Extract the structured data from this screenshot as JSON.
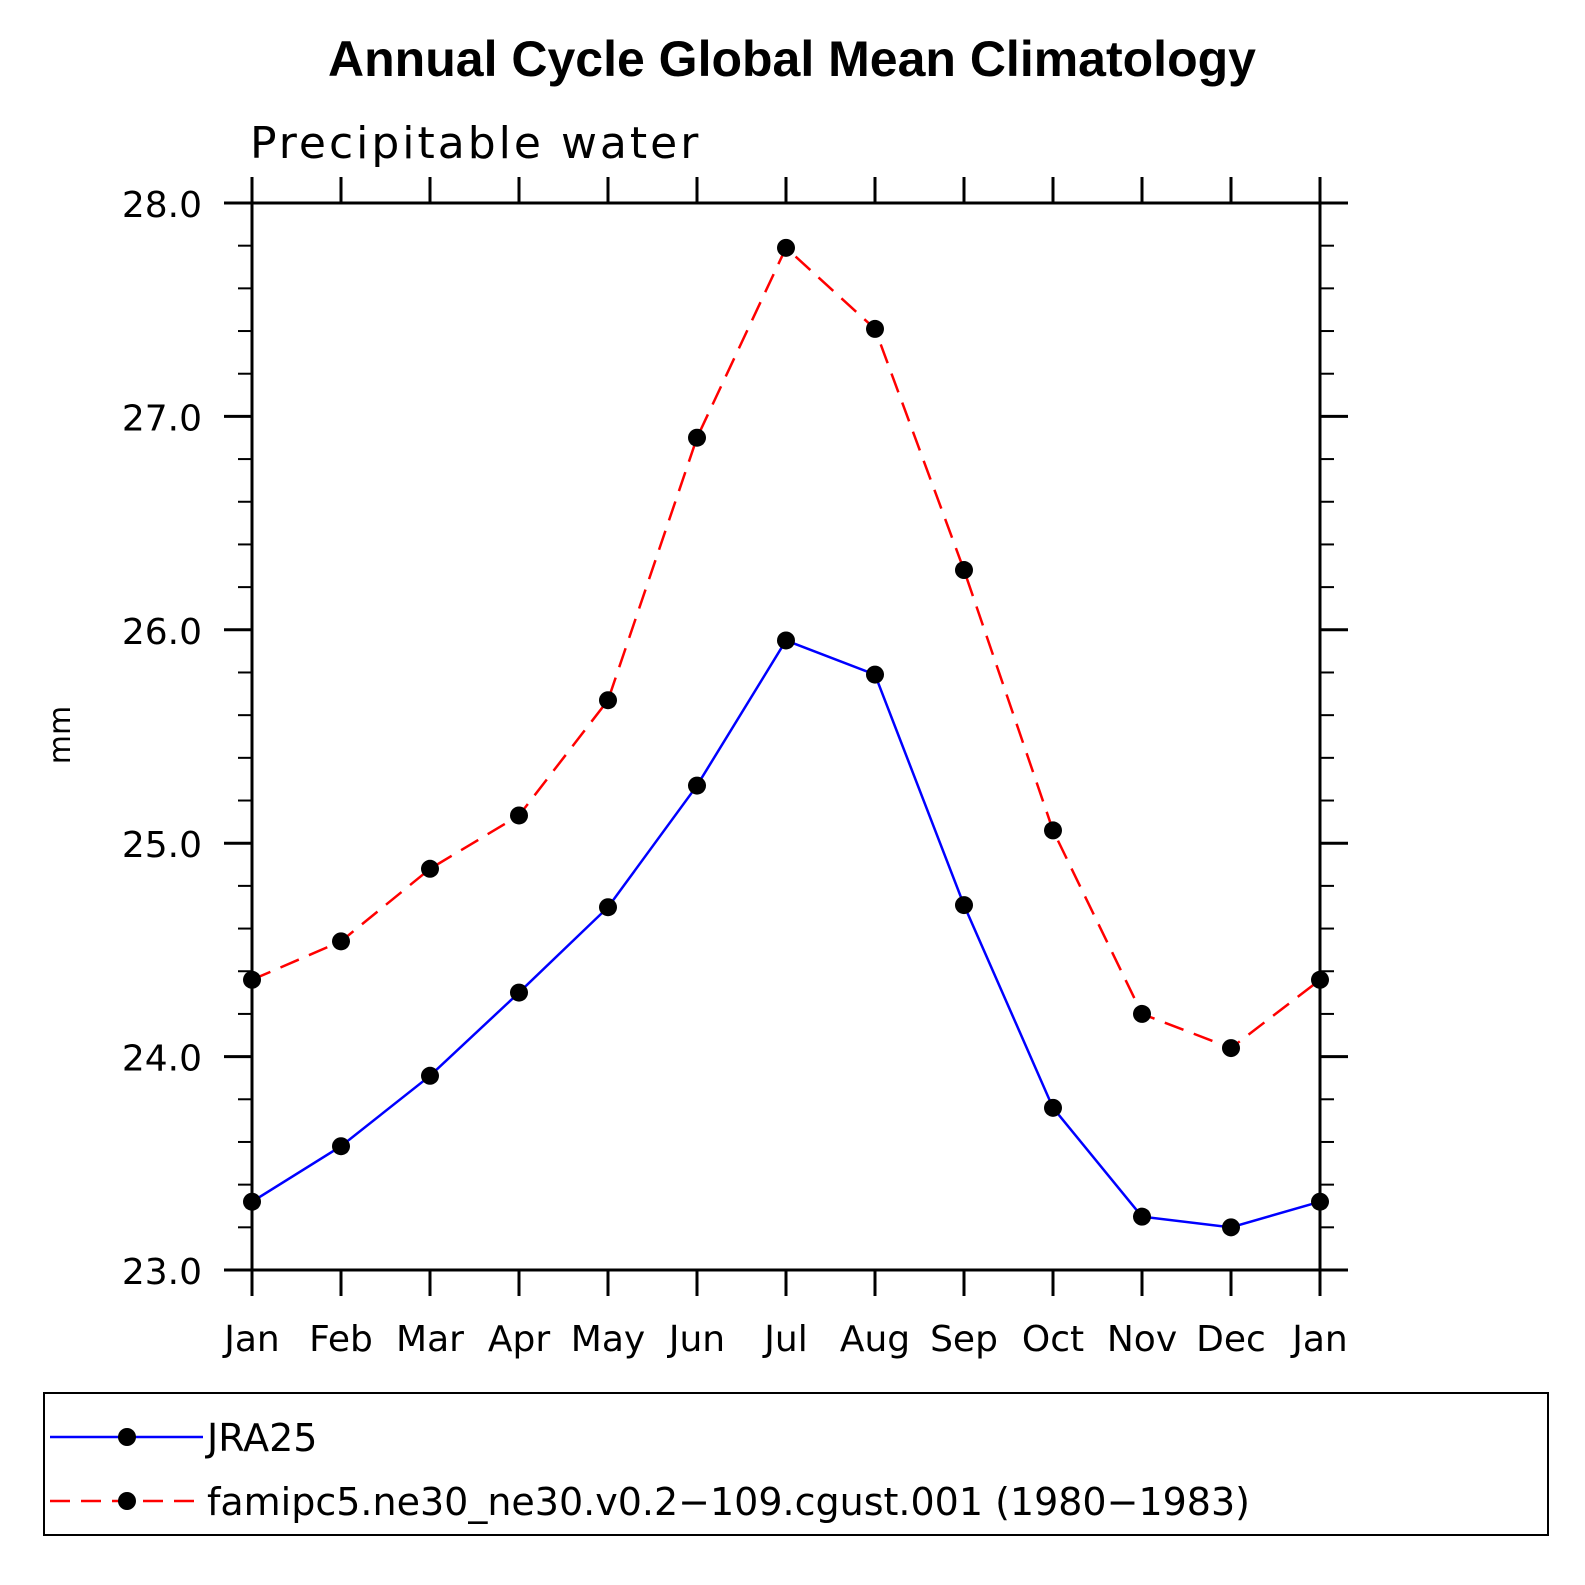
{
  "chart_data": {
    "type": "line",
    "title": "Annual Cycle Global Mean Climatology",
    "subtitle": "Precipitable water",
    "xlabel": "",
    "ylabel": "mm",
    "categories": [
      "Jan",
      "Feb",
      "Mar",
      "Apr",
      "May",
      "Jun",
      "Jul",
      "Aug",
      "Sep",
      "Oct",
      "Nov",
      "Dec",
      "Jan"
    ],
    "ylim": [
      23.0,
      28.0
    ],
    "yticks": [
      "23.0",
      "24.0",
      "25.0",
      "26.0",
      "27.0",
      "28.0"
    ],
    "yminor_step": 0.2,
    "grid": false,
    "legend_position": "bottom",
    "series": [
      {
        "name": "JRA25",
        "color": "#0000ff",
        "dash": "solid",
        "marker": "filled-circle",
        "values": [
          23.32,
          23.58,
          23.91,
          24.3,
          24.7,
          25.27,
          25.95,
          25.79,
          24.71,
          23.76,
          23.25,
          23.2,
          23.32
        ]
      },
      {
        "name": "famipc5.ne30_ne30.v0.2−109.cgust.001 (1980−1983)",
        "color": "#ff0000",
        "dash": "dashed",
        "marker": "filled-circle",
        "values": [
          24.36,
          24.54,
          24.88,
          25.13,
          25.67,
          26.9,
          27.79,
          27.41,
          26.28,
          25.06,
          24.2,
          24.04,
          24.36
        ]
      }
    ]
  }
}
